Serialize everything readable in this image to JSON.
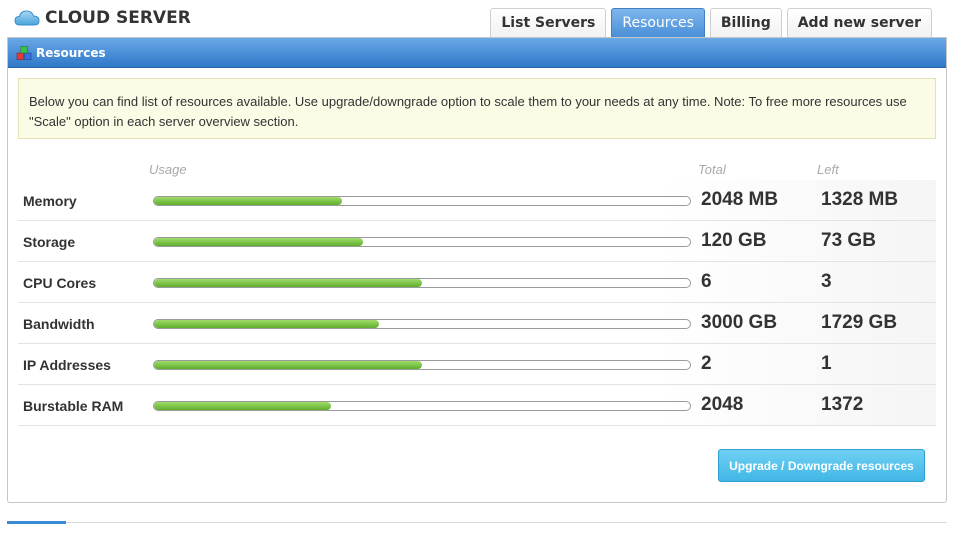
{
  "app": {
    "title": "CLOUD SERVER",
    "icon": "cloud-icon"
  },
  "tabs": [
    {
      "label": "List Servers",
      "active": false
    },
    {
      "label": "Resources",
      "active": true
    },
    {
      "label": "Billing",
      "active": false
    },
    {
      "label": "Add new server",
      "active": false
    }
  ],
  "panel": {
    "title": "Resources",
    "icon": "cubes-icon",
    "info": "Below you can find list of resources available. Use upgrade/downgrade option to scale them to your needs at any time. Note: To free more resources use \"Scale\" option in each server overview section."
  },
  "columns": {
    "usage": "Usage",
    "total": "Total",
    "left": "Left"
  },
  "resources": [
    {
      "label": "Memory",
      "total": "2048 MB",
      "left": "1328 MB",
      "usage_percent": 35
    },
    {
      "label": "Storage",
      "total": "120 GB",
      "left": "73 GB",
      "usage_percent": 39
    },
    {
      "label": "CPU Cores",
      "total": "6",
      "left": "3",
      "usage_percent": 50
    },
    {
      "label": "Bandwidth",
      "total": "3000 GB",
      "left": "1729 GB",
      "usage_percent": 42
    },
    {
      "label": "IP Addresses",
      "total": "2",
      "left": "1",
      "usage_percent": 50
    },
    {
      "label": "Burstable RAM",
      "total": "2048",
      "left": "1372",
      "usage_percent": 33
    }
  ],
  "upgrade_button": "Upgrade / Downgrade resources",
  "colors": {
    "accent": "#4a8fd8",
    "bar_fill": "#6cbb34",
    "button": "#41b7e6"
  }
}
